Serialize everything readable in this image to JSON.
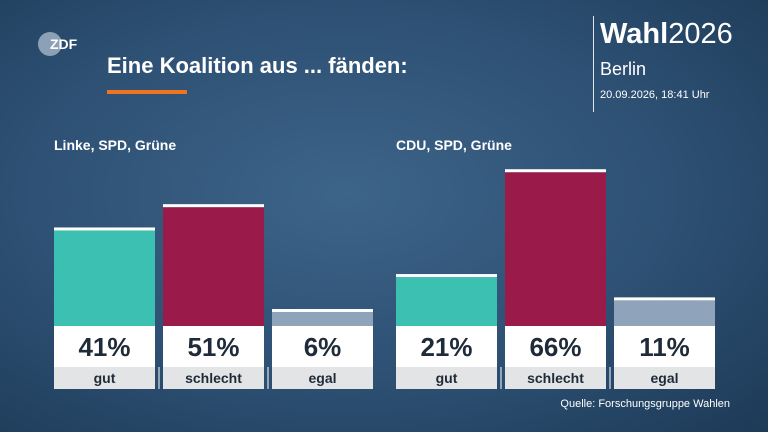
{
  "header": {
    "title": "Eine Koalition aus ... fänden:",
    "brand_bold": "Wahl",
    "brand_year": "2026",
    "region": "Berlin",
    "datetime": "20.09.2026, 18:41 Uhr",
    "logo_text": "ZDF"
  },
  "colors": {
    "gut": "#3cc0b1",
    "schlecht": "#9a1a4a",
    "egal": "#8fa4ba",
    "accent": "#f0741e"
  },
  "chart_data": [
    {
      "type": "bar",
      "title": "Linke, SPD, Grüne",
      "categories": [
        "gut",
        "schlecht",
        "egal"
      ],
      "values": [
        41,
        51,
        6
      ],
      "labels": [
        "41%",
        "51%",
        "6%"
      ],
      "unit": "%"
    },
    {
      "type": "bar",
      "title": "CDU, SPD, Grüne",
      "categories": [
        "gut",
        "schlecht",
        "egal"
      ],
      "values": [
        21,
        66,
        11
      ],
      "labels": [
        "21%",
        "66%",
        "11%"
      ],
      "unit": "%"
    }
  ],
  "footer": {
    "source": "Quelle: Forschungsgruppe Wahlen"
  }
}
